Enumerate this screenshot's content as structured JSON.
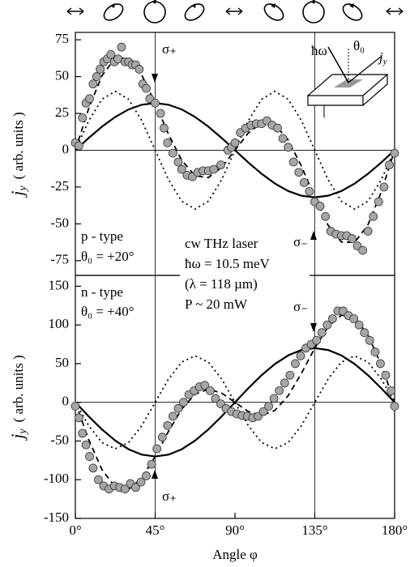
{
  "chart_data": [
    {
      "type": "line",
      "ylabel_symbol": "j",
      "ylabel_subscript": "y",
      "ylabel_unit": "( arb. units )",
      "ylim": [
        -85,
        80
      ],
      "yticks": [
        -75,
        -50,
        -25,
        0,
        25,
        50,
        75
      ],
      "xlim": [
        0,
        180
      ],
      "zero_line": true,
      "vlines": [
        45,
        135
      ],
      "x": [
        0,
        7.5,
        15,
        22.5,
        30,
        37.5,
        45,
        52.5,
        60,
        67.5,
        75,
        82.5,
        90,
        97.5,
        105,
        112.5,
        120,
        127.5,
        135,
        142.5,
        150,
        157.5,
        165,
        172.5,
        180
      ],
      "series": [
        {
          "style": "solid",
          "color": "#000000",
          "values": [
            0,
            8.3,
            16,
            22.6,
            27.7,
            30.9,
            32,
            30.9,
            27.7,
            22.6,
            16,
            8.3,
            0,
            -8.3,
            -16,
            -22.6,
            -27.7,
            -30.9,
            -32,
            -30.9,
            -27.7,
            -22.6,
            -16,
            -8.3,
            0
          ]
        },
        {
          "style": "dotted",
          "color": "#000000",
          "values": [
            0,
            20,
            34.6,
            40,
            34.6,
            20,
            0,
            -20,
            -34.6,
            -40,
            -34.6,
            -20,
            0,
            20,
            34.6,
            40,
            34.6,
            20,
            0,
            -20,
            -34.6,
            -40,
            -34.6,
            -20,
            0
          ]
        },
        {
          "style": "dashed",
          "color": "#000000",
          "values": [
            0,
            28.3,
            50.6,
            62.6,
            62.3,
            50.9,
            32,
            10.9,
            -6.9,
            -17.4,
            -18.6,
            -11.7,
            0,
            11.7,
            18.6,
            17.4,
            6.9,
            -10.9,
            -32,
            -50.9,
            -62.3,
            -62.6,
            -50.6,
            -28.3,
            0
          ]
        },
        {
          "style": "markers",
          "color": "#a6a6a6",
          "x": [
            0,
            2,
            4,
            6,
            8,
            10,
            12,
            14,
            16,
            18,
            20,
            22,
            24,
            26,
            28,
            30,
            32,
            34,
            36,
            38,
            40,
            42,
            45,
            48,
            50,
            52,
            55,
            58,
            60,
            63,
            66,
            69,
            72,
            75,
            78,
            82,
            86,
            88,
            90,
            93,
            96,
            99,
            102,
            105,
            108,
            111,
            114,
            117,
            120,
            123,
            126,
            129,
            132,
            135,
            138,
            141,
            144,
            147,
            150,
            153,
            156,
            159,
            162,
            165,
            168,
            171,
            174,
            177,
            180
          ],
          "values": [
            5,
            3,
            22,
            32,
            35,
            45,
            50,
            55,
            60,
            62,
            65,
            60,
            62,
            70,
            60,
            60,
            58,
            58,
            55,
            45,
            42,
            35,
            32,
            25,
            15,
            5,
            -2,
            -8,
            -13,
            -17,
            -18,
            -15,
            -14,
            -14,
            -13,
            -10,
            0,
            2,
            5,
            12,
            15,
            17,
            18,
            18,
            20,
            17,
            15,
            8,
            2,
            -8,
            -15,
            -22,
            -28,
            -35,
            -38,
            -45,
            -55,
            -57,
            -58,
            -58,
            -60,
            -65,
            -68,
            -55,
            -45,
            -35,
            -25,
            -10,
            -2
          ]
        }
      ],
      "annotations": [
        "σ₊",
        "p - type",
        "θ₀ = +20°",
        "cw THz laser",
        "ħω = 10.5 meV",
        "(λ = 118 µm)",
        "P ~ 20 mW",
        "σ₋"
      ],
      "inset": {
        "photon": "ħω",
        "angle": "θ₀",
        "current": "j",
        "current_subscript": "y"
      }
    },
    {
      "type": "line",
      "ylabel_symbol": "j",
      "ylabel_subscript": "y",
      "ylabel_unit": "( arb. units )",
      "xlabel": "Angle φ",
      "ylim": [
        -150,
        164
      ],
      "yticks": [
        -150,
        -100,
        -50,
        0,
        50,
        100,
        150
      ],
      "xlim": [
        0,
        180
      ],
      "xticks": [
        {
          "value": 0,
          "label": "0°"
        },
        {
          "value": 45,
          "label": "45°"
        },
        {
          "value": 90,
          "label": "90°"
        },
        {
          "value": 135,
          "label": "135°"
        },
        {
          "value": 180,
          "label": "180°"
        }
      ],
      "zero_line": true,
      "vlines": [
        45,
        135
      ],
      "x": [
        0,
        7.5,
        15,
        22.5,
        30,
        37.5,
        45,
        52.5,
        60,
        67.5,
        75,
        82.5,
        90,
        97.5,
        105,
        112.5,
        120,
        127.5,
        135,
        142.5,
        150,
        157.5,
        165,
        172.5,
        180
      ],
      "series": [
        {
          "style": "solid",
          "color": "#000000",
          "values": [
            0,
            -18.1,
            -35,
            -49.5,
            -60.6,
            -67.6,
            -70,
            -67.6,
            -60.6,
            -49.5,
            -35,
            -18.1,
            0,
            18.1,
            35,
            49.5,
            60.6,
            67.6,
            70,
            67.6,
            60.6,
            49.5,
            35,
            18.1,
            0
          ]
        },
        {
          "style": "dotted",
          "color": "#000000",
          "values": [
            0,
            -30,
            -52,
            -60,
            -52,
            -30,
            0,
            30,
            52,
            60,
            52,
            30,
            0,
            -30,
            -52,
            -60,
            -52,
            -30,
            0,
            30,
            52,
            60,
            52,
            30,
            0
          ]
        },
        {
          "style": "dashed",
          "color": "#000000",
          "values": [
            0,
            -48.1,
            -87,
            -109.5,
            -112.6,
            -97.6,
            -70,
            -37.6,
            -8.6,
            10.5,
            17,
            11.9,
            0,
            -11.9,
            -17,
            -10.5,
            8.6,
            37.6,
            70,
            97.6,
            112.6,
            109.5,
            87,
            48.1,
            0
          ]
        },
        {
          "style": "markers",
          "color": "#a6a6a6",
          "x": [
            0,
            2,
            4,
            6,
            8,
            10,
            13,
            16,
            19,
            22,
            25,
            28,
            31,
            34,
            37,
            40,
            43,
            46,
            49,
            52,
            55,
            58,
            61,
            64,
            67,
            70,
            73,
            76,
            79,
            82,
            85,
            88,
            91,
            94,
            97,
            100,
            103,
            106,
            109,
            112,
            115,
            118,
            121,
            124,
            127,
            130,
            133,
            136,
            139,
            142,
            145,
            148,
            151,
            154,
            157,
            160,
            163,
            166,
            169,
            172,
            175,
            178,
            180
          ],
          "values": [
            -5,
            -20,
            -40,
            -55,
            -70,
            -85,
            -100,
            -108,
            -112,
            -108,
            -110,
            -112,
            -105,
            -110,
            -103,
            -95,
            -80,
            -60,
            -45,
            -30,
            -18,
            -8,
            0,
            10,
            15,
            20,
            22,
            15,
            5,
            -2,
            -8,
            -12,
            -15,
            -17,
            -18,
            -20,
            -18,
            -12,
            -5,
            5,
            15,
            25,
            35,
            50,
            60,
            70,
            75,
            80,
            90,
            100,
            108,
            118,
            118,
            112,
            108,
            100,
            90,
            80,
            65,
            50,
            35,
            15,
            -5
          ]
        }
      ],
      "annotations": [
        "σ₋",
        "n - type",
        "θ₀ = +40°",
        "σ₊"
      ]
    }
  ]
}
